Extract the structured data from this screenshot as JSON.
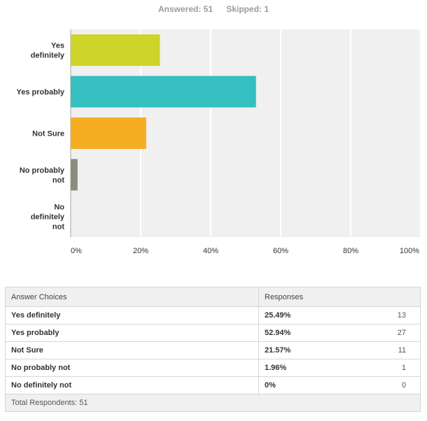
{
  "summary": {
    "answered": "Answered: 51",
    "skipped": "Skipped: 1"
  },
  "chart_data": {
    "type": "bar",
    "orientation": "horizontal",
    "categories": [
      [
        "Yes",
        "definitely"
      ],
      [
        "Yes probably"
      ],
      [
        "Not Sure"
      ],
      [
        "No probably",
        "not"
      ],
      [
        "No",
        "definitely",
        "not"
      ]
    ],
    "values": [
      25.49,
      52.94,
      21.57,
      1.96,
      0
    ],
    "colors": [
      "#cdd42a",
      "#35bfc1",
      "#f6ad21",
      "#8a8c7d",
      "#cccccc"
    ],
    "xlim": [
      0,
      100
    ],
    "ticks": [
      "0%",
      "20%",
      "40%",
      "60%",
      "80%",
      "100%"
    ],
    "grid": true
  },
  "table": {
    "headers": [
      "Answer Choices",
      "Responses"
    ],
    "rows": [
      {
        "choice": "Yes definitely",
        "pct": "25.49%",
        "count": "13"
      },
      {
        "choice": "Yes probably",
        "pct": "52.94%",
        "count": "27"
      },
      {
        "choice": "Not Sure",
        "pct": "21.57%",
        "count": "11"
      },
      {
        "choice": "No probably not",
        "pct": "1.96%",
        "count": "1"
      },
      {
        "choice": "No definitely not",
        "pct": "0%",
        "count": "0"
      }
    ],
    "footer": "Total Respondents: 51"
  }
}
